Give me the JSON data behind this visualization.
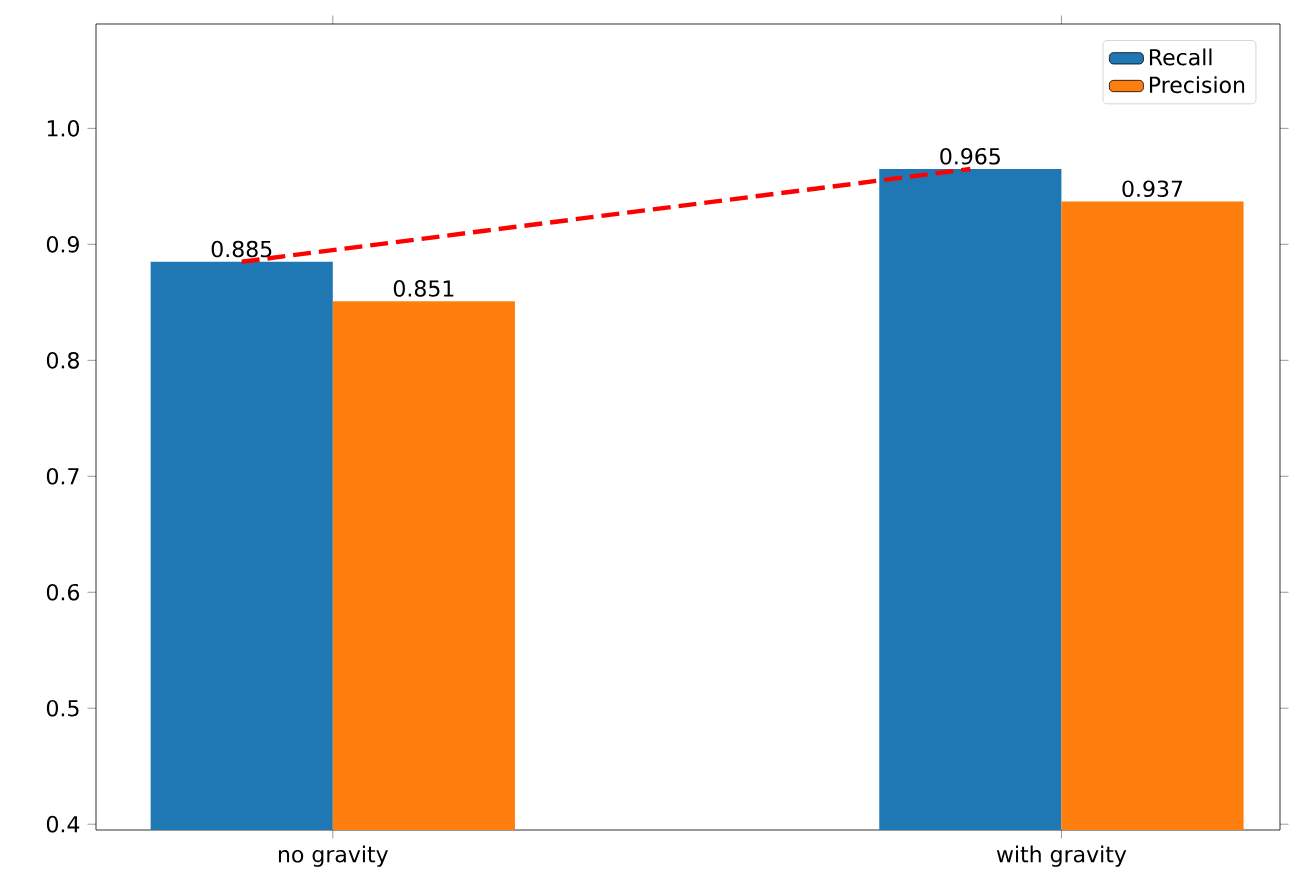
{
  "chart_data": {
    "type": "bar",
    "categories": [
      "no gravity",
      "with gravity"
    ],
    "series": [
      {
        "name": "Recall",
        "color": "#1f77b4",
        "values": [
          0.885,
          0.965
        ]
      },
      {
        "name": "Precision",
        "color": "#ff7f0e",
        "values": [
          0.851,
          0.937
        ]
      },
      {
        "type": "line",
        "color": "#ff0000",
        "line_style": "dashed",
        "values": [
          0.885,
          0.965
        ],
        "value_labels": [
          null,
          null
        ]
      }
    ],
    "ylim": [
      0.395,
      1.09
    ],
    "yticks": [
      0.4,
      0.5,
      0.6,
      0.7,
      0.8,
      0.9,
      {
        "value": 1.0,
        "label": "1.0"
      }
    ],
    "data_labels": true,
    "legend": "top right"
  }
}
